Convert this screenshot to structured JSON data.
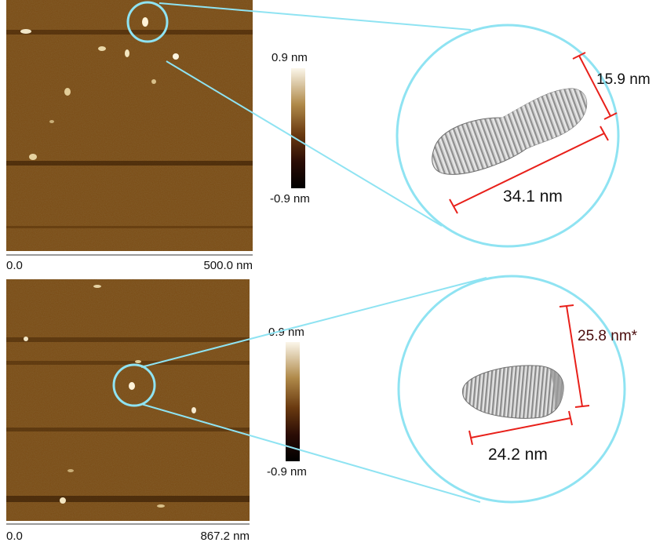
{
  "panels": [
    {
      "axis_start": "0.0",
      "axis_end": "500.0 nm",
      "colorbar_max": "0.9 nm",
      "colorbar_min": "-0.9 nm",
      "dim_width": "34.1 nm",
      "dim_height": "15.9 nm"
    },
    {
      "axis_start": "0.0",
      "axis_end": "867.2 nm",
      "colorbar_max": "0.9 nm",
      "colorbar_min": "-0.9 nm",
      "dim_width": "24.2 nm",
      "dim_height": "25.8 nm*"
    }
  ],
  "colors": {
    "afm_base": "#7a4a12",
    "zoom_outline": "#8fe3f2",
    "dimension_line": "#e8201a",
    "dim_label_dark": "#4a0d0d"
  }
}
